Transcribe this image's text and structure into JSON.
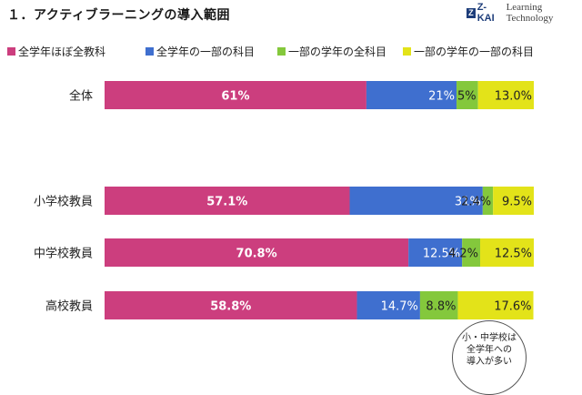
{
  "page_title": "１．アクティブラーニングの導入範囲",
  "logo": {
    "mark": "Z-KAI",
    "tagline": "Learning Technology"
  },
  "callout": {
    "lines": [
      "小・中学校は",
      "全学年への",
      "導入が多い"
    ]
  },
  "chart_data": {
    "type": "bar",
    "orientation": "horizontal",
    "stacked": true,
    "legend_position": "top",
    "categories": [
      "全体",
      "小学校教員",
      "中学校教員",
      "高校教員"
    ],
    "xlim": [
      0,
      100
    ],
    "series": [
      {
        "name": "全学年ほぼ全教科",
        "color": "#cc3e7e",
        "values": [
          61,
          57.1,
          70.8,
          58.8
        ],
        "labels": [
          "61%",
          "57.1%",
          "70.8%",
          "58.8%"
        ]
      },
      {
        "name": "全学年の一部の科目",
        "color": "#3f6fcf",
        "values": [
          21,
          31,
          12.5,
          14.7
        ],
        "labels": [
          "21%",
          "31%",
          "12.5%",
          "14.7%"
        ]
      },
      {
        "name": "一部の学年の全科目",
        "color": "#84c83c",
        "values": [
          5,
          2.4,
          4.2,
          8.8
        ],
        "labels": [
          "5%",
          "2.4%",
          "4.2%",
          "8.8%"
        ]
      },
      {
        "name": "一部の学年の一部の科目",
        "color": "#e3e319",
        "values": [
          13,
          9.5,
          12.5,
          17.6
        ],
        "labels": [
          "13.0%",
          "9.5%",
          "12.5%",
          "17.6%"
        ]
      }
    ]
  }
}
